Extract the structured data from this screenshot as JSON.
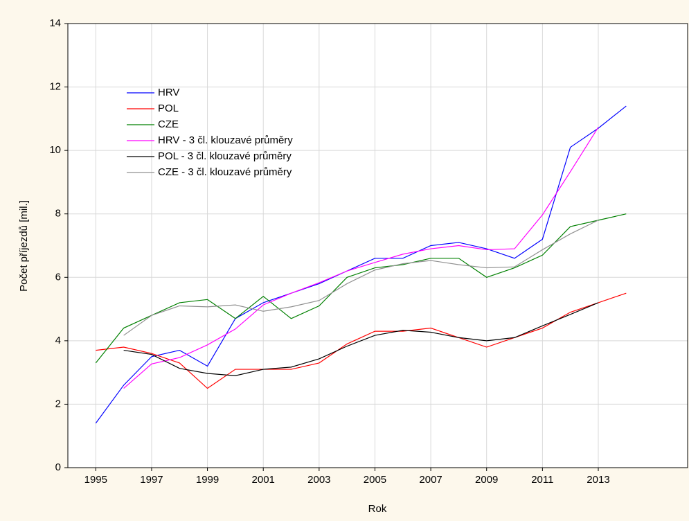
{
  "chart_data": {
    "type": "line",
    "x_label": "Rok",
    "y_label": "Počet příjezdů [mil.]",
    "x": [
      1995,
      1996,
      1997,
      1998,
      1999,
      2000,
      2001,
      2002,
      2003,
      2004,
      2005,
      2006,
      2007,
      2008,
      2009,
      2010,
      2011,
      2012,
      2013,
      2014
    ],
    "series": [
      {
        "name": "HRV",
        "color": "#0000ff",
        "values": [
          1.4,
          2.6,
          3.5,
          3.7,
          3.2,
          4.7,
          5.2,
          5.5,
          5.8,
          6.2,
          6.6,
          6.6,
          7.0,
          7.1,
          6.9,
          6.6,
          7.2,
          10.1,
          10.7,
          11.4
        ]
      },
      {
        "name": "POL",
        "color": "#ff0000",
        "values": [
          3.7,
          3.8,
          3.6,
          3.3,
          2.5,
          3.1,
          3.1,
          3.1,
          3.3,
          3.9,
          4.3,
          4.3,
          4.4,
          4.1,
          3.8,
          4.1,
          4.4,
          4.9,
          5.2,
          5.5
        ]
      },
      {
        "name": "CZE",
        "color": "#008000",
        "values": [
          3.3,
          4.4,
          4.8,
          5.2,
          5.3,
          4.7,
          5.4,
          4.7,
          5.1,
          6.0,
          6.3,
          6.4,
          6.6,
          6.6,
          6.0,
          6.3,
          6.7,
          7.6,
          7.8,
          8.0
        ]
      },
      {
        "name": "HRV - 3 čl. klouzavé průměry",
        "color": "#ff00ff",
        "values": [
          null,
          2.5,
          3.27,
          3.47,
          3.87,
          4.37,
          5.13,
          5.5,
          5.83,
          6.2,
          6.47,
          6.73,
          6.9,
          7.0,
          6.87,
          6.9,
          7.97,
          9.33,
          10.73,
          null
        ]
      },
      {
        "name": "POL - 3 čl. klouzavé průměry",
        "color": "#000000",
        "values": [
          null,
          3.7,
          3.57,
          3.13,
          2.97,
          2.9,
          3.1,
          3.17,
          3.43,
          3.83,
          4.17,
          4.33,
          4.27,
          4.1,
          4.0,
          4.1,
          4.47,
          4.83,
          5.2,
          null
        ]
      },
      {
        "name": "CZE - 3 čl. klouzavé průměry",
        "color": "#909090",
        "values": [
          null,
          4.17,
          4.8,
          5.1,
          5.07,
          5.13,
          4.93,
          5.07,
          5.27,
          5.8,
          6.23,
          6.43,
          6.53,
          6.4,
          6.3,
          6.33,
          6.87,
          7.37,
          7.8,
          null
        ]
      }
    ],
    "xlim": [
      1994,
      2016.2
    ],
    "xticks": [
      1995,
      1997,
      1999,
      2001,
      2003,
      2005,
      2007,
      2009,
      2011,
      2013
    ],
    "ylim": [
      0,
      14
    ],
    "yticks": [
      0,
      2,
      4,
      6,
      8,
      10,
      12,
      14
    ],
    "grid": true,
    "legend": "upper left"
  }
}
